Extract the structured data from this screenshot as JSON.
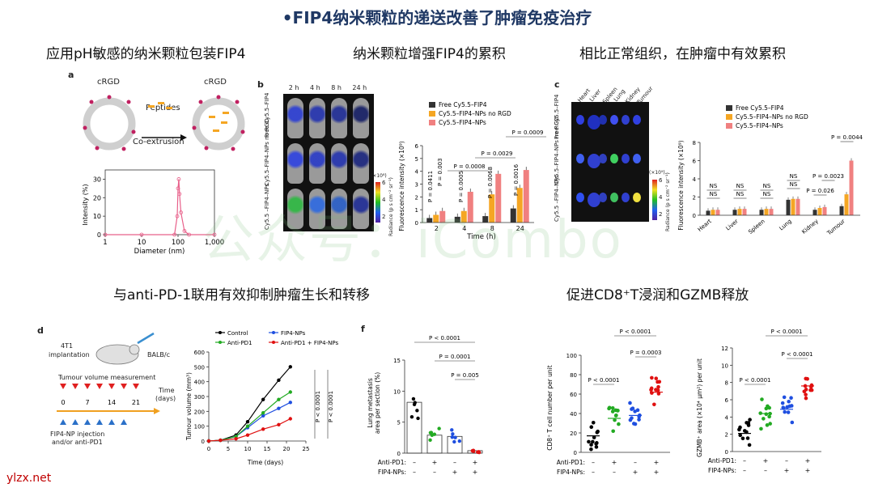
{
  "slide_title": "•FIP4纳米颗粒的递送改善了肿瘤免疫治疗",
  "sections": {
    "s1": "应用pH敏感的纳米颗粒包装FIP4",
    "s2": "纳米颗粒增强FIP4的累积",
    "s3": "相比正常组织，在肿瘤中有效累积",
    "s4": "与anti-PD-1联用有效抑制肿瘤生长和转移",
    "s5": "促进CD8⁺T浸润和GZMB释放"
  },
  "watermark": "公众号：iCombo",
  "site": "ylzx.net",
  "panel_a": {
    "letter": "a",
    "crgd1": "cRGD",
    "crgd2": "cRGD",
    "peptides": "Peptides",
    "coext": "Co-extrusion",
    "ylabel": "Intensity (%)",
    "xlabel": "Diameter (nm)",
    "yticks": [
      "0",
      "10",
      "20",
      "30"
    ],
    "xticks": [
      "1",
      "10",
      "100",
      "1,000"
    ]
  },
  "panel_b": {
    "letter": "b",
    "times": [
      "2 h",
      "4 h",
      "8 h",
      "24 h"
    ],
    "rows": [
      "Free Cy5.5–FIP4",
      "Cy5.5–FIP4–NPs no RGD",
      "Cy5.5 –FIP4–NPs"
    ],
    "scale_label": "Radiance (p s cm⁻² sr⁻¹)",
    "scale_unit": "(×10⁸)",
    "scale_ticks": [
      "6",
      "4",
      "2"
    ],
    "ylabel": "Fluorescence intensity (×10⁹)",
    "xlabel": "Time (h)"
  },
  "panel_c": {
    "letter": "c",
    "organs": [
      "Heart",
      "Liver",
      "Spleen",
      "Lung",
      "Kidney",
      "Tumour"
    ],
    "rows": [
      "Free Cy5.5–FIP4",
      "Cy5.5–FIP4–NPs no RGD",
      "Cy5.5 –FIP4–NPs"
    ],
    "scale_label": "Radiance (p s cm⁻² sr⁻¹)",
    "scale_unit": "(×10⁹)",
    "scale_ticks": [
      "6",
      "4",
      "2"
    ],
    "ylabel": "Fluorescence intensity (×10⁹)"
  },
  "panel_d": {
    "letter": "d",
    "t1": "4T1",
    "t2": "implantation",
    "balb": "BALB/c",
    "measure": "Tumour volume measurement",
    "time": "Time",
    "days": "(days)",
    "days_ticks": [
      "0",
      "7",
      "14",
      "21"
    ],
    "inj1": "FIP4-NP injection",
    "inj2": "and/or anti-PD1",
    "ylabel": "Tumour volume (mm³)",
    "xlabel": "Time (days)"
  },
  "panel_f": {
    "letter": "f",
    "ylabel1": "Lung metastasis",
    "ylabel2": "area per section (%)"
  },
  "treat_labels": {
    "anti": "Anti-PD1:",
    "fip": "FIP4-NPs:",
    "minus": "–",
    "plus": "+"
  },
  "cd8": {
    "ylabel": "CD8⁺ T cell number per unit"
  },
  "gzmb": {
    "ylabel": "GZMB⁺ area (×10⁴ μm²) per unit"
  },
  "chart_data": [
    {
      "type": "line",
      "id": "panel_a_size",
      "x": [
        1,
        10,
        80,
        95,
        100,
        105,
        110,
        120,
        150,
        200,
        1000
      ],
      "values": [
        0,
        0,
        0,
        10,
        25,
        30,
        22,
        12,
        2,
        0,
        0
      ],
      "xlabel": "Diameter (nm)",
      "ylabel": "Intensity (%)",
      "ylim": [
        0,
        35
      ],
      "xscale": "log",
      "xlim": [
        1,
        1000
      ]
    },
    {
      "type": "bar",
      "id": "panel_b_bars",
      "categories": [
        "2",
        "4",
        "8",
        "24"
      ],
      "series": [
        {
          "name": "Free Cy5.5–FIP4",
          "color": "#333333",
          "values": [
            0.35,
            0.45,
            0.5,
            1.1
          ]
        },
        {
          "name": "Cy5.5–FIP4–NPs no RGD",
          "color": "#f5a623",
          "values": [
            0.6,
            0.9,
            2.2,
            2.7
          ]
        },
        {
          "name": "Cy5.5–FIP4–NPs",
          "color": "#f08080",
          "values": [
            0.9,
            2.4,
            3.8,
            4.1
          ]
        }
      ],
      "pvalues": [
        "P = 0.0411",
        "P = 0.003",
        "P = 0.0008",
        "P = 0.0005",
        "P = 0.0029",
        "P = 0.0068",
        "P = 0.0009",
        "P = 0.0016"
      ],
      "xlabel": "Time (h)",
      "ylabel": "Fluorescence intensity (×10⁹)",
      "ylim": [
        0,
        6
      ],
      "yticks": [
        "0",
        "1",
        "2",
        "3",
        "4",
        "5",
        "6"
      ]
    },
    {
      "type": "bar",
      "id": "panel_c_bars",
      "categories": [
        "Heart",
        "Liver",
        "Spleen",
        "Lung",
        "Kidney",
        "Tumour"
      ],
      "series": [
        {
          "name": "Free Cy5.5–FIP4",
          "color": "#333333",
          "values": [
            0.5,
            0.6,
            0.6,
            1.7,
            0.6,
            1.0
          ]
        },
        {
          "name": "Cy5.5–FIP4–NPs no RGD",
          "color": "#f5a623",
          "values": [
            0.6,
            0.7,
            0.7,
            1.8,
            0.8,
            2.3
          ]
        },
        {
          "name": "Cy5.5–FIP4–NPs",
          "color": "#f08080",
          "values": [
            0.6,
            0.7,
            0.7,
            1.8,
            0.9,
            6.0
          ]
        }
      ],
      "pvalues": [
        "NS",
        "NS",
        "NS",
        "NS",
        "NS",
        "NS",
        "NS",
        "NS",
        "P = 0.026",
        "P = 0.0023",
        "P = 0.0044"
      ],
      "ylabel": "Fluorescence intensity (×10⁹)",
      "ylim": [
        0,
        8
      ],
      "yticks": [
        "0",
        "2",
        "4",
        "6",
        "8"
      ]
    },
    {
      "type": "line",
      "id": "panel_d_growth",
      "x": [
        0,
        3,
        7,
        10,
        14,
        18,
        21
      ],
      "series": [
        {
          "name": "Control",
          "color": "#000000",
          "values": [
            0,
            5,
            40,
            130,
            280,
            410,
            500
          ]
        },
        {
          "name": "FIP4-NPs",
          "color": "#1f4fe0",
          "values": [
            0,
            5,
            30,
            90,
            170,
            220,
            260
          ]
        },
        {
          "name": "Anti-PD1",
          "color": "#22aa22",
          "values": [
            0,
            5,
            30,
            100,
            190,
            280,
            330
          ]
        },
        {
          "name": "Anti-PD1 + FIP4-NPs",
          "color": "#e01010",
          "values": [
            0,
            5,
            15,
            40,
            80,
            110,
            150
          ]
        }
      ],
      "pvalues": [
        "P < 0.0001",
        "P < 0.0001"
      ],
      "xlabel": "Time (days)",
      "ylabel": "Tumour volume (mm³)",
      "ylim": [
        0,
        600
      ],
      "xlim": [
        0,
        25
      ],
      "yticks": [
        "0",
        "100",
        "200",
        "300",
        "400",
        "500",
        "600"
      ],
      "xticks": [
        "0",
        "5",
        "10",
        "15",
        "20",
        "25"
      ]
    },
    {
      "type": "bar",
      "id": "panel_f_metastasis",
      "categories": [
        "–/–",
        "+/–",
        "–/+",
        "+/+"
      ],
      "values": [
        8.2,
        2.9,
        2.7,
        0.4
      ],
      "pvalues": [
        "P < 0.0001",
        "P = 0.0001",
        "P = 0.005"
      ],
      "ylim": [
        0,
        15
      ],
      "yticks": [
        "0",
        "5",
        "10",
        "15"
      ]
    },
    {
      "type": "scatter",
      "id": "cd8_dots",
      "categories": [
        "–/–",
        "+/–",
        "–/+",
        "+/+"
      ],
      "means": [
        17,
        35,
        38,
        62
      ],
      "colors": [
        "#000000",
        "#22aa22",
        "#1f4fe0",
        "#e01010"
      ],
      "pvalues": [
        "P < 0.0001",
        "P = 0.0003",
        "P < 0.0001"
      ],
      "ylim": [
        0,
        100
      ],
      "yticks": [
        "0",
        "20",
        "40",
        "60",
        "80",
        "100"
      ]
    },
    {
      "type": "scatter",
      "id": "gzmb_dots",
      "categories": [
        "–/–",
        "+/–",
        "–/+",
        "+/+"
      ],
      "means": [
        2.1,
        4.4,
        4.9,
        7.6
      ],
      "colors": [
        "#000000",
        "#22aa22",
        "#1f4fe0",
        "#e01010"
      ],
      "pvalues": [
        "P < 0.0001",
        "P < 0.0001",
        "P < 0.0001"
      ],
      "ylim": [
        0,
        12
      ],
      "yticks": [
        "0",
        "2",
        "4",
        "6",
        "8",
        "10",
        "12"
      ]
    }
  ]
}
